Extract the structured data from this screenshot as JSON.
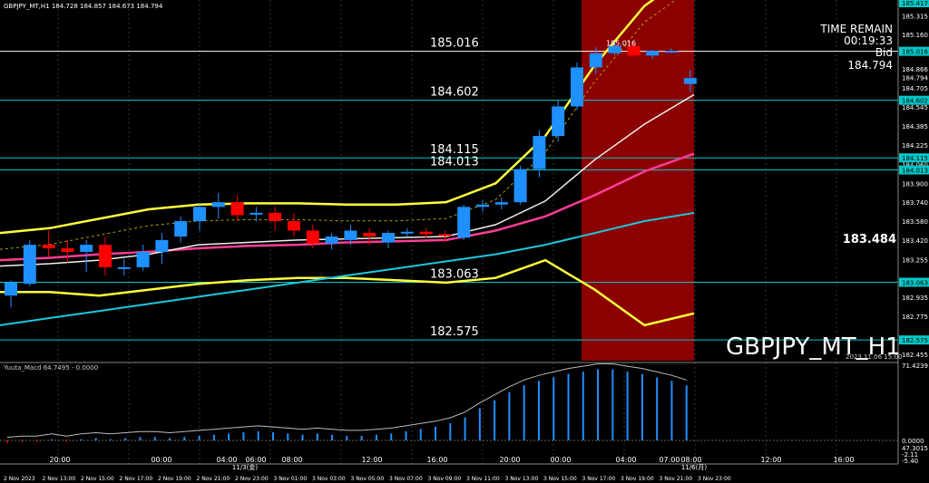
{
  "header": {
    "symbol_info": "GBPJPY_MT,H1  184.728 184.857 184.673 184.794"
  },
  "watermark": "GBPJPY_MT_H1",
  "info_panel": {
    "time_remain_label": "TIME REMAIN",
    "time_remain_value": "00:19:33",
    "bid_label": "Bid",
    "bid_value": "184.794"
  },
  "right_badge": "183.484",
  "colors": {
    "background": "#000000",
    "bull": "#1e90ff",
    "bear": "#ff0000",
    "highlight": "#8b0000",
    "hline": "#00c8c8",
    "ma_yellow": "#ffff3c",
    "ma_pink": "#ff3c96",
    "ma_cyan": "#1ec8dc",
    "ma_white": "#f0f0f0",
    "band_olive": "#b4a000"
  },
  "chart_data": [
    {
      "type": "candlestick",
      "series_name": "GBPJPY_MT,H1",
      "ohlc_current": {
        "open": 184.728,
        "high": 184.857,
        "low": 184.673,
        "close": 184.794
      },
      "candles": [
        {
          "o": 182.95,
          "h": 183.08,
          "l": 182.85,
          "c": 183.06
        },
        {
          "o": 183.05,
          "h": 183.42,
          "l": 183.03,
          "c": 183.38
        },
        {
          "o": 183.38,
          "h": 183.5,
          "l": 183.28,
          "c": 183.35
        },
        {
          "o": 183.35,
          "h": 183.42,
          "l": 183.23,
          "c": 183.32
        },
        {
          "o": 183.32,
          "h": 183.42,
          "l": 183.15,
          "c": 183.38
        },
        {
          "o": 183.38,
          "h": 183.45,
          "l": 183.12,
          "c": 183.19
        },
        {
          "o": 183.19,
          "h": 183.26,
          "l": 183.12,
          "c": 183.19
        },
        {
          "o": 183.19,
          "h": 183.38,
          "l": 183.16,
          "c": 183.32
        },
        {
          "o": 183.32,
          "h": 183.48,
          "l": 183.22,
          "c": 183.42
        },
        {
          "o": 183.45,
          "h": 183.62,
          "l": 183.4,
          "c": 183.58
        },
        {
          "o": 183.58,
          "h": 183.72,
          "l": 183.5,
          "c": 183.7
        },
        {
          "o": 183.7,
          "h": 183.82,
          "l": 183.6,
          "c": 183.74
        },
        {
          "o": 183.74,
          "h": 183.8,
          "l": 183.58,
          "c": 183.63
        },
        {
          "o": 183.65,
          "h": 183.7,
          "l": 183.58,
          "c": 183.65
        },
        {
          "o": 183.65,
          "h": 183.7,
          "l": 183.5,
          "c": 183.58
        },
        {
          "o": 183.58,
          "h": 183.65,
          "l": 183.45,
          "c": 183.5
        },
        {
          "o": 183.5,
          "h": 183.55,
          "l": 183.35,
          "c": 183.39
        },
        {
          "o": 183.39,
          "h": 183.48,
          "l": 183.34,
          "c": 183.45
        },
        {
          "o": 183.42,
          "h": 183.55,
          "l": 183.38,
          "c": 183.5
        },
        {
          "o": 183.48,
          "h": 183.52,
          "l": 183.38,
          "c": 183.45
        },
        {
          "o": 183.4,
          "h": 183.5,
          "l": 183.35,
          "c": 183.48
        },
        {
          "o": 183.48,
          "h": 183.52,
          "l": 183.45,
          "c": 183.49
        },
        {
          "o": 183.49,
          "h": 183.52,
          "l": 183.44,
          "c": 183.47
        },
        {
          "o": 183.47,
          "h": 183.5,
          "l": 183.4,
          "c": 183.46
        },
        {
          "o": 183.44,
          "h": 183.72,
          "l": 183.42,
          "c": 183.7
        },
        {
          "o": 183.7,
          "h": 183.76,
          "l": 183.66,
          "c": 183.72
        },
        {
          "o": 183.72,
          "h": 183.78,
          "l": 183.68,
          "c": 183.74
        },
        {
          "o": 183.74,
          "h": 184.05,
          "l": 183.72,
          "c": 184.02
        },
        {
          "o": 184.02,
          "h": 184.35,
          "l": 183.95,
          "c": 184.3
        },
        {
          "o": 184.3,
          "h": 184.6,
          "l": 184.25,
          "c": 184.55
        },
        {
          "o": 184.55,
          "h": 184.92,
          "l": 184.52,
          "c": 184.88
        },
        {
          "o": 184.88,
          "h": 185.05,
          "l": 184.82,
          "c": 185.0
        },
        {
          "o": 185.0,
          "h": 185.1,
          "l": 184.98,
          "c": 185.06
        },
        {
          "o": 185.06,
          "h": 185.1,
          "l": 184.98,
          "c": 184.98
        },
        {
          "o": 184.98,
          "h": 185.03,
          "l": 184.95,
          "c": 185.02
        },
        {
          "o": 185.02,
          "h": 185.04,
          "l": 185.0,
          "c": 185.02
        },
        {
          "o": 184.74,
          "h": 184.86,
          "l": 184.67,
          "c": 184.79
        }
      ],
      "moving_averages": {
        "yellow_upper": [
          183.48,
          183.52,
          183.6,
          183.68,
          183.72,
          183.73,
          183.73,
          183.72,
          183.72,
          183.74,
          183.9,
          184.3,
          184.9,
          185.4,
          185.7
        ],
        "yellow_lower": [
          182.98,
          182.98,
          182.95,
          183.0,
          183.05,
          183.08,
          183.1,
          183.1,
          183.08,
          183.06,
          183.1,
          183.25,
          183.0,
          182.7,
          182.8
        ],
        "pink": [
          183.25,
          183.27,
          183.3,
          183.32,
          183.35,
          183.37,
          183.38,
          183.4,
          183.41,
          183.42,
          183.5,
          183.62,
          183.8,
          184.0,
          184.15
        ],
        "cyan": [
          182.7,
          182.76,
          182.82,
          182.88,
          182.94,
          183.0,
          183.06,
          183.12,
          183.18,
          183.24,
          183.3,
          183.38,
          183.48,
          183.58,
          183.65
        ],
        "white": [
          183.2,
          183.22,
          183.25,
          183.3,
          183.38,
          183.4,
          183.42,
          183.43,
          183.44,
          183.45,
          183.55,
          183.75,
          184.1,
          184.4,
          184.65
        ]
      },
      "horizontal_levels": [
        {
          "value": 185.016,
          "label": "185.016"
        },
        {
          "value": 184.602,
          "label": "184.602"
        },
        {
          "value": 184.115,
          "label": "184.115"
        },
        {
          "value": 184.013,
          "label": "184.013"
        },
        {
          "value": 183.063,
          "label": "183.063"
        },
        {
          "value": 182.575,
          "label": "182.575"
        }
      ],
      "high_marker": "185.016",
      "price_axis_ticks": [
        "185.315",
        "185.160",
        "185.016",
        "184.866",
        "184.794",
        "184.705",
        "184.602",
        "184.545",
        "184.385",
        "184.225",
        "184.115",
        "184.060",
        "184.013",
        "183.900",
        "183.740",
        "183.580",
        "183.420",
        "183.255",
        "183.063",
        "182.935",
        "182.775",
        "182.575",
        "182.455"
      ],
      "top_label": "185.417",
      "time_axis_labels": [
        "20:00",
        "00:00",
        "04:00",
        "06:00",
        "08:00",
        "12:00",
        "16:00",
        "20:00",
        "00:00",
        "04:00",
        "07:00",
        "08:00",
        "12:00",
        "16:00"
      ],
      "time_axis_day_labels": [
        "11/3(金)",
        "11/6(月)"
      ],
      "time_axis_label_positions": [
        0.0,
        0.14,
        0.23,
        0.27,
        0.32,
        0.43,
        0.52,
        0.62,
        0.69,
        0.78,
        0.84,
        0.87,
        0.98,
        1.08
      ],
      "date_labels": [
        "2 Nov 2023",
        "2 Nov 13:00",
        "2 Nov 15:00",
        "2 Nov 17:00",
        "2 Nov 19:00",
        "2 Nov 21:00",
        "2 Nov 23:00",
        "3 Nov 01:00",
        "3 Nov 03:00",
        "3 Nov 05:00",
        "3 Nov 07:00",
        "3 Nov 09:00",
        "3 Nov 11:00",
        "3 Nov 13:00",
        "3 Nov 15:00",
        "3 Nov 17:00",
        "3 Nov 19:00",
        "3 Nov 21:00",
        "3 Nov 23:00"
      ],
      "vline_label": "2023.11.06 15:00"
    },
    {
      "type": "bar",
      "series_name": "Yuuta_Macd 64.7495 - 0.0000",
      "axis_ticks": [
        "71.4239",
        "0.0000",
        "47.3015",
        "-2.11",
        "-5.40"
      ],
      "values": [
        -2,
        -1,
        -1,
        1,
        -1,
        1,
        2,
        1,
        2,
        3,
        3,
        2,
        3,
        4,
        5,
        6,
        7,
        8,
        7,
        6,
        5,
        6,
        5,
        4,
        4,
        5,
        6,
        8,
        10,
        12,
        15,
        20,
        28,
        35,
        42,
        48,
        52,
        55,
        58,
        60,
        62,
        62,
        60,
        58,
        55,
        52,
        48
      ]
    }
  ]
}
